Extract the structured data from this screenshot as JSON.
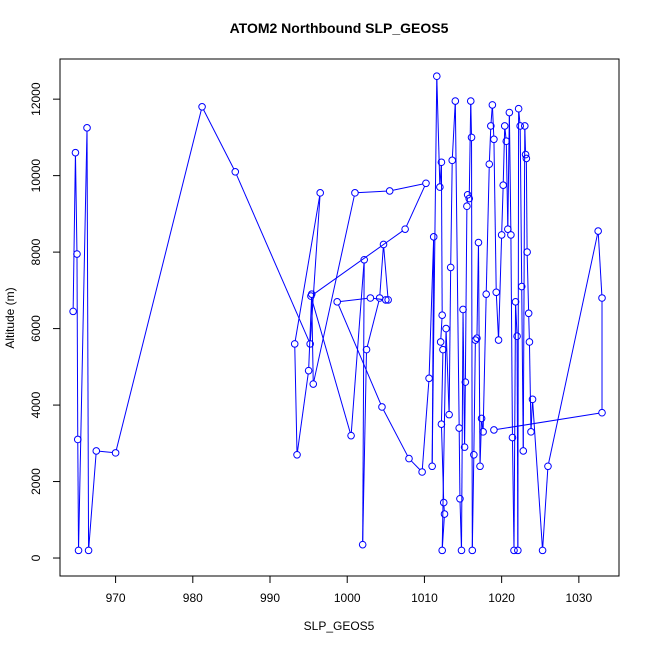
{
  "chart_data": {
    "type": "line",
    "title": "ATOM2 Northbound SLP_GEOS5",
    "xlabel": "SLP_GEOS5",
    "ylabel": "Altitude (m)",
    "xlim": [
      962.8,
      1035.2
    ],
    "ylim": [
      -470,
      13050
    ],
    "xticks": [
      970,
      980,
      990,
      1000,
      1010,
      1020,
      1030
    ],
    "yticks": [
      0,
      2000,
      4000,
      6000,
      8000,
      10000,
      12000
    ],
    "xtick_labels": [
      "970",
      "980",
      "990",
      "1000",
      "1010",
      "1020",
      "1030"
    ],
    "ytick_labels": [
      "0",
      "2000",
      "4000",
      "6000",
      "8000",
      "10000",
      "12000"
    ],
    "grid": false,
    "legend": "none",
    "series_color": "#0000ff",
    "marker": "open-circle",
    "series": [
      {
        "x": [
          964.5,
          964.8,
          965.0,
          965.1,
          965.2,
          966.3,
          966.5,
          967.5,
          970.0,
          981.2,
          985.5,
          995.2,
          996.5,
          993.2,
          993.5,
          995.0,
          995.4,
          995.6,
          1001.0,
          1005.5,
          1010.2,
          1007.5,
          995.3,
          1000.5,
          1002.2,
          1002.0,
          1002.5,
          1004.2,
          1004.7,
          1005.3,
          1005.0,
          1003.0,
          998.7,
          1004.5,
          1008.0,
          1009.7,
          1010.6,
          1011.2,
          1011.0,
          1011.6,
          1012.0,
          1012.2,
          1012.3,
          1012.1,
          1012.4,
          1012.2,
          1012.5,
          1012.6,
          1012.3,
          1012.8,
          1013.2,
          1013.4,
          1013.6,
          1014.0,
          1014.5,
          1014.6,
          1014.8,
          1015.0,
          1015.2,
          1015.3,
          1015.5,
          1015.6,
          1015.8,
          1016.0,
          1016.1,
          1016.2,
          1016.4,
          1016.6,
          1016.8,
          1017.0,
          1017.2,
          1017.4,
          1017.6,
          1018.0,
          1018.4,
          1018.6,
          1018.8,
          1019.0,
          1019.3,
          1019.6,
          1020.0,
          1020.2,
          1020.4,
          1020.6,
          1020.8,
          1021.0,
          1021.2,
          1021.4,
          1021.6,
          1021.8,
          1022.0,
          1022.1,
          1022.2,
          1022.4,
          1022.6,
          1022.8,
          1023.0,
          1023.1,
          1023.2,
          1023.3,
          1023.5,
          1023.6,
          1023.8,
          1024.0,
          1025.3,
          1026.0,
          1032.5,
          1033.0,
          1033.0,
          1019.0
        ],
        "y": [
          6450,
          10600,
          7950,
          3100,
          200,
          11250,
          200,
          2800,
          2750,
          11800,
          10100,
          5600,
          9550,
          5600,
          2700,
          4900,
          6900,
          4550,
          9550,
          9600,
          9800,
          8600,
          6850,
          3200,
          7800,
          350,
          5450,
          6800,
          8200,
          6750,
          6750,
          6800,
          6700,
          3950,
          2600,
          2250,
          4700,
          8400,
          2400,
          12600,
          9700,
          10350,
          6350,
          5650,
          5450,
          3500,
          1450,
          1150,
          200,
          6000,
          3750,
          7600,
          10400,
          11950,
          3400,
          1550,
          200,
          6500,
          2900,
          4600,
          9200,
          9500,
          9400,
          11950,
          11000,
          200,
          2700,
          5700,
          5750,
          8250,
          2400,
          3650,
          3300,
          6900,
          10300,
          11300,
          11850,
          10950,
          6950,
          5700,
          8450,
          9750,
          11300,
          10900,
          8600,
          11650,
          8450,
          3150,
          200,
          6700,
          5800,
          200,
          11750,
          11300,
          7100,
          2800,
          11300,
          10550,
          10450,
          8000,
          6400,
          5650,
          3300,
          4150,
          200,
          2400,
          8550,
          6800,
          3800,
          3350
        ]
      }
    ]
  }
}
